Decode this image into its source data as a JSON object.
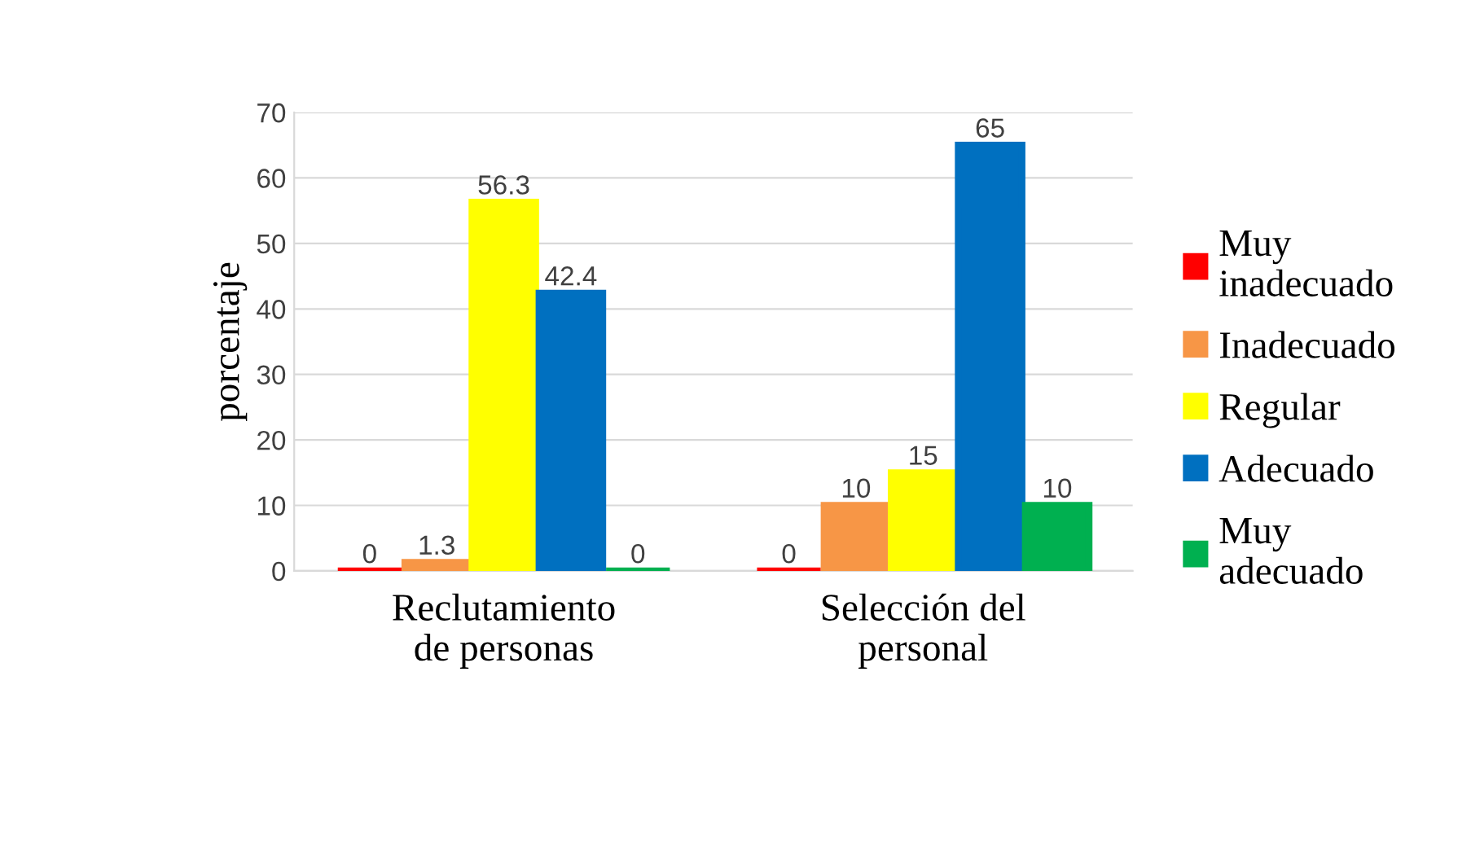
{
  "chart_data": {
    "type": "bar",
    "ylabel": "porcentaje",
    "categories": [
      "Reclutamiento de personas",
      "Selección del personal"
    ],
    "series": [
      {
        "name": "Muy inadecuado",
        "color": "#ff0000",
        "values": [
          0,
          0
        ]
      },
      {
        "name": "Inadecuado",
        "color": "#f79646",
        "values": [
          1.3,
          10
        ]
      },
      {
        "name": "Regular",
        "color": "#ffff00",
        "values": [
          56.3,
          15
        ]
      },
      {
        "name": "Adecuado",
        "color": "#0070c0",
        "values": [
          42.4,
          65
        ]
      },
      {
        "name": "Muy adecuado",
        "color": "#00b050",
        "values": [
          0,
          10
        ]
      }
    ],
    "ylim": [
      0,
      70
    ],
    "yticks": [
      0,
      10,
      20,
      30,
      40,
      50,
      60,
      70
    ],
    "grid": "y",
    "legend": "right",
    "data_labels": true
  }
}
